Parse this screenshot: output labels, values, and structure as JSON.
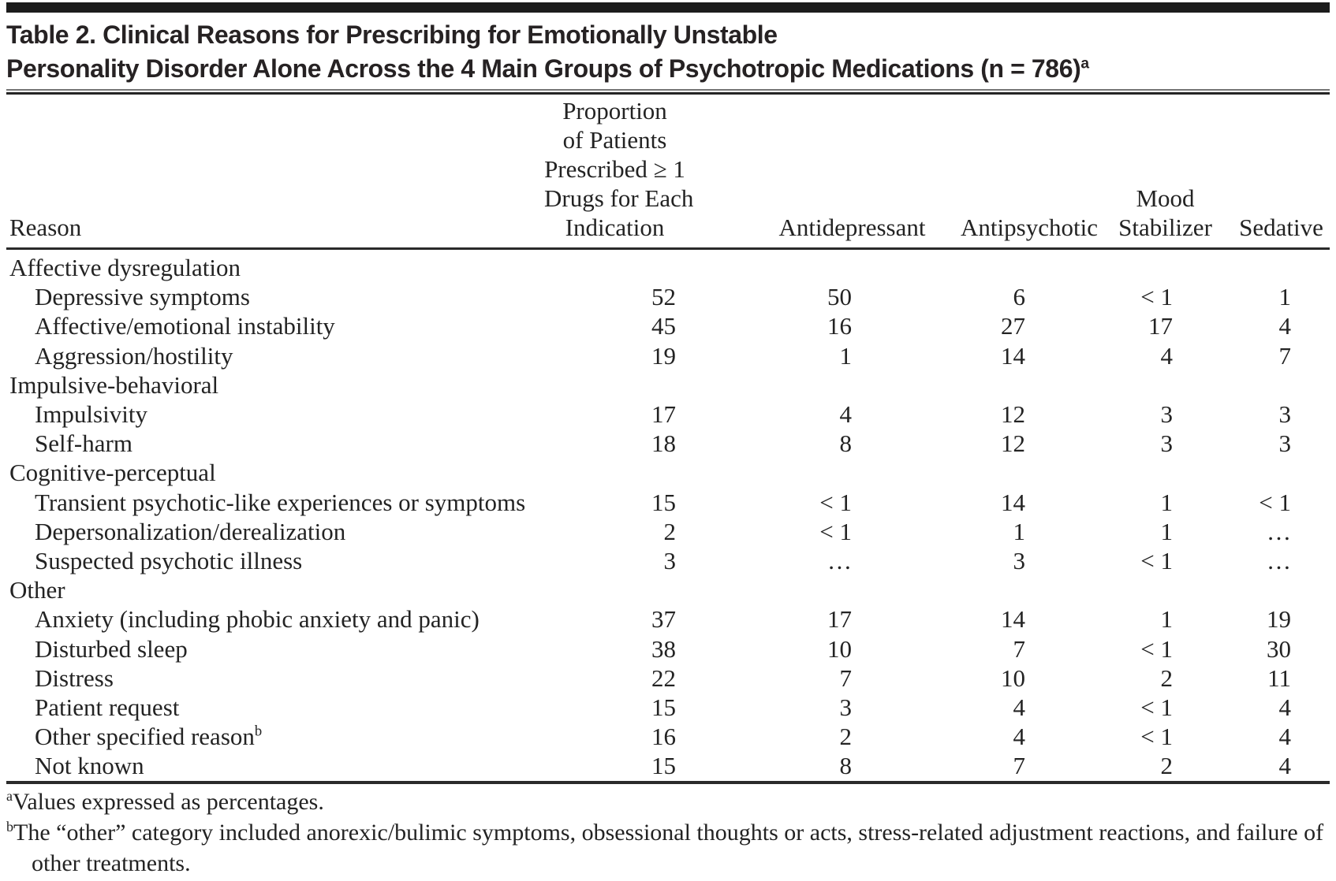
{
  "page": {
    "title_line1": "Table 2. Clinical Reasons for Prescribing for Emotionally Unstable",
    "title_line2": "Personality Disorder Alone Across the 4 Main Groups of Psychotropic Medications (n = 786)",
    "title_footnote_marker": "a"
  },
  "table": {
    "columns": {
      "reason": "Reason",
      "proportion_lines": [
        "Proportion",
        "of Patients",
        "Prescribed ≥ 1",
        "Drugs for Each",
        "Indication"
      ],
      "antidepressant": "Antidepressant",
      "antipsychotic": "Antipsychotic",
      "mood_stabilizer_lines": [
        "Mood",
        "Stabilizer"
      ],
      "sedative": "Sedative"
    },
    "rows": [
      {
        "type": "group",
        "label": "Affective dysregulation",
        "sup": "",
        "values": [
          "",
          "",
          "",
          "",
          ""
        ]
      },
      {
        "type": "item",
        "label": "Depressive symptoms",
        "sup": "",
        "values": [
          "52",
          "50",
          "6",
          "< 1",
          "1"
        ]
      },
      {
        "type": "item",
        "label": "Affective/emotional instability",
        "sup": "",
        "values": [
          "45",
          "16",
          "27",
          "17",
          "4"
        ]
      },
      {
        "type": "item",
        "label": "Aggression/hostility",
        "sup": "",
        "values": [
          "19",
          "1",
          "14",
          "4",
          "7"
        ]
      },
      {
        "type": "group",
        "label": "Impulsive-behavioral",
        "sup": "",
        "values": [
          "",
          "",
          "",
          "",
          ""
        ]
      },
      {
        "type": "item",
        "label": "Impulsivity",
        "sup": "",
        "values": [
          "17",
          "4",
          "12",
          "3",
          "3"
        ]
      },
      {
        "type": "item",
        "label": "Self-harm",
        "sup": "",
        "values": [
          "18",
          "8",
          "12",
          "3",
          "3"
        ]
      },
      {
        "type": "group",
        "label": "Cognitive-perceptual",
        "sup": "",
        "values": [
          "",
          "",
          "",
          "",
          ""
        ]
      },
      {
        "type": "item",
        "label": "Transient psychotic-like experiences or symptoms",
        "sup": "",
        "values": [
          "15",
          "< 1",
          "14",
          "1",
          "< 1"
        ]
      },
      {
        "type": "item",
        "label": "Depersonalization/derealization",
        "sup": "",
        "values": [
          "2",
          "< 1",
          "1",
          "1",
          "…"
        ]
      },
      {
        "type": "item",
        "label": "Suspected psychotic illness",
        "sup": "",
        "values": [
          "3",
          "…",
          "3",
          "< 1",
          "…"
        ]
      },
      {
        "type": "group",
        "label": "Other",
        "sup": "",
        "values": [
          "",
          "",
          "",
          "",
          ""
        ]
      },
      {
        "type": "item",
        "label": "Anxiety (including phobic anxiety and panic)",
        "sup": "",
        "values": [
          "37",
          "17",
          "14",
          "1",
          "19"
        ]
      },
      {
        "type": "item",
        "label": "Disturbed sleep",
        "sup": "",
        "values": [
          "38",
          "10",
          "7",
          "< 1",
          "30"
        ]
      },
      {
        "type": "item",
        "label": "Distress",
        "sup": "",
        "values": [
          "22",
          "7",
          "10",
          "2",
          "11"
        ]
      },
      {
        "type": "item",
        "label": "Patient request",
        "sup": "",
        "values": [
          "15",
          "3",
          "4",
          "< 1",
          "4"
        ]
      },
      {
        "type": "item",
        "label": "Other specified reason",
        "sup": "b",
        "values": [
          "16",
          "2",
          "4",
          "< 1",
          "4"
        ]
      },
      {
        "type": "item",
        "label": "Not known",
        "sup": "",
        "values": [
          "15",
          "8",
          "7",
          "2",
          "4"
        ]
      }
    ]
  },
  "footnotes": {
    "a_marker": "a",
    "a_text": "Values expressed as percentages.",
    "b_marker": "b",
    "b_text": "The “other” category included anorexic/bulimic symptoms, obsessional thoughts or acts, stress-related adjustment reactions, and failure of other treatments."
  }
}
